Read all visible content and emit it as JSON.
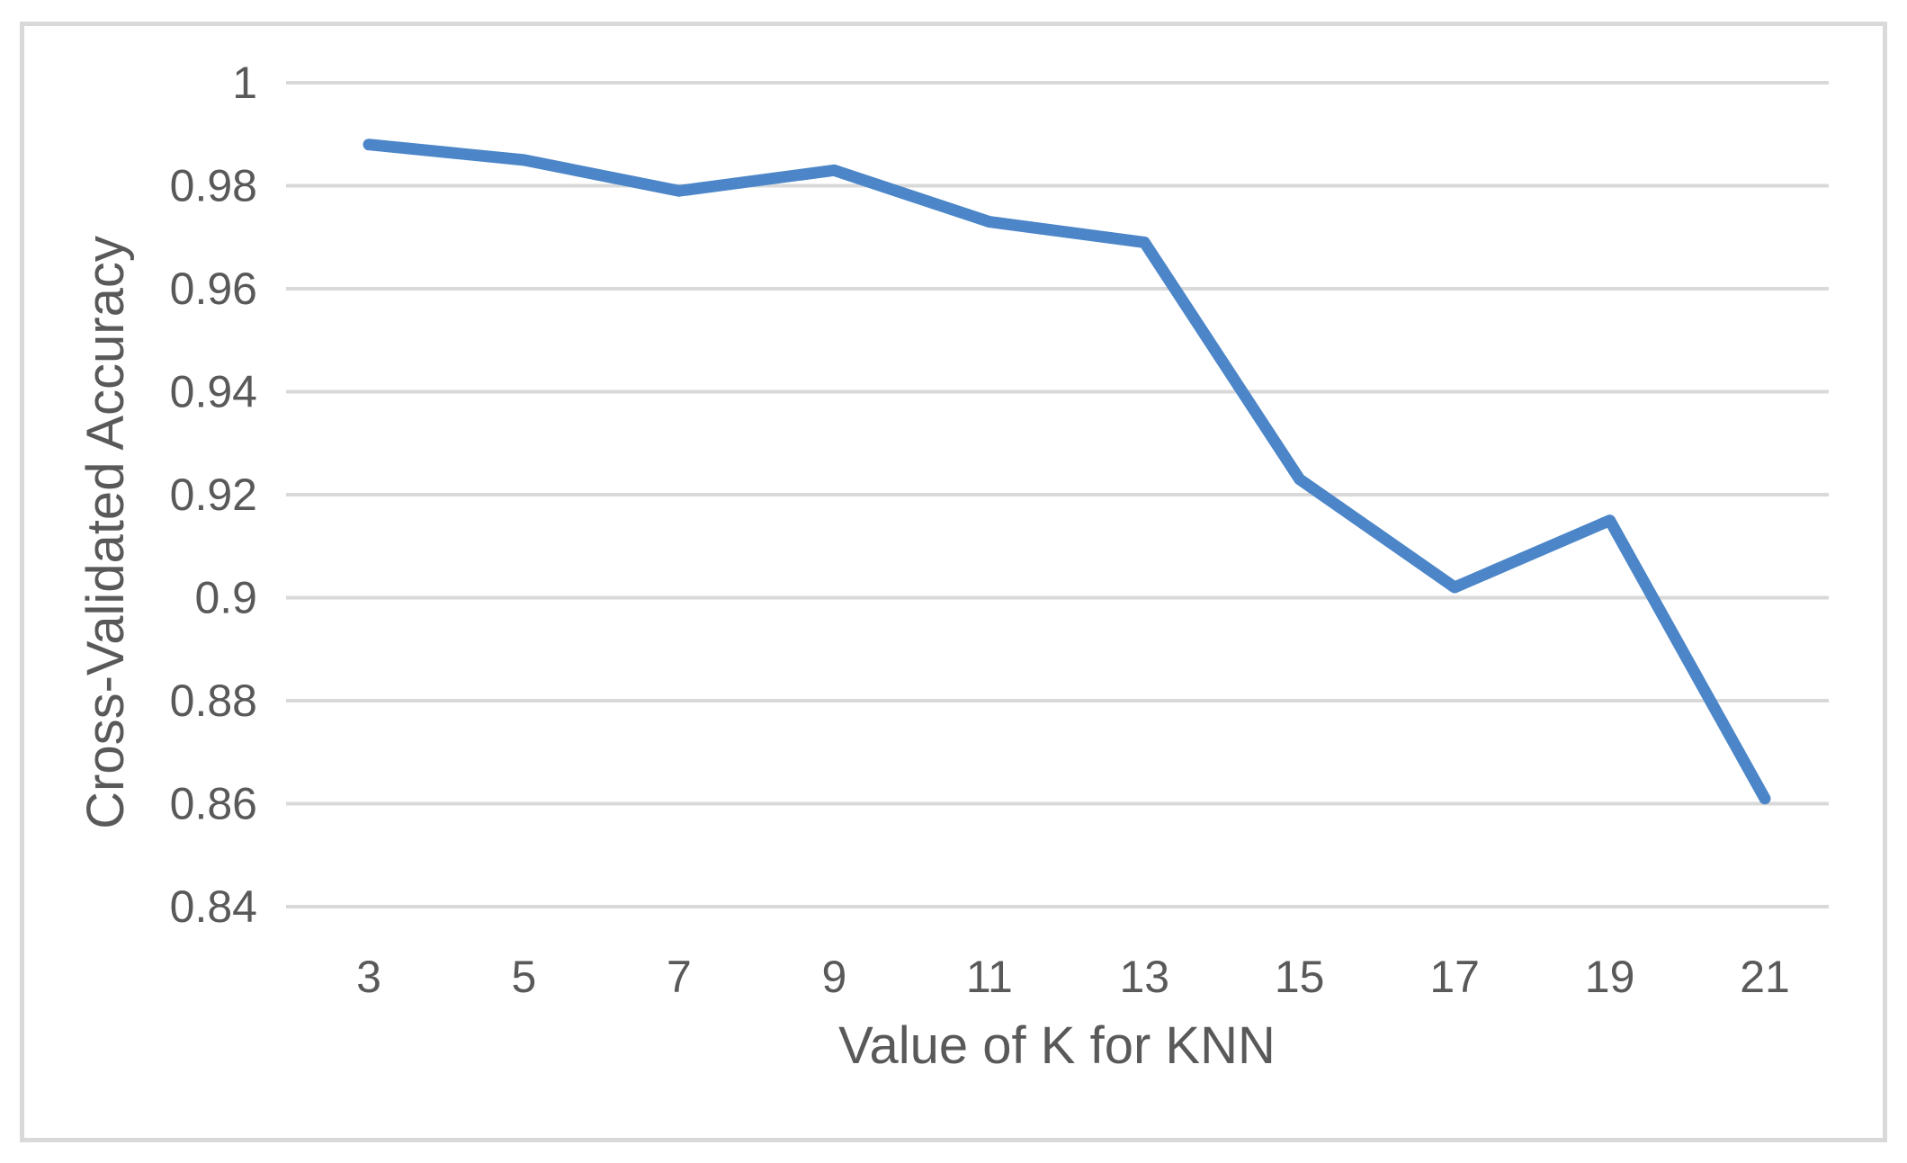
{
  "chart_data": {
    "type": "line",
    "title": "",
    "xlabel": "Value of K for KNN",
    "ylabel": "Cross-Validated Accuracy",
    "categories": [
      3,
      5,
      7,
      9,
      11,
      13,
      15,
      17,
      19,
      21
    ],
    "series": [
      {
        "name": "Cross-Validated Accuracy",
        "values": [
          0.988,
          0.985,
          0.979,
          0.983,
          0.973,
          0.969,
          0.923,
          0.902,
          0.915,
          0.861
        ]
      }
    ],
    "ylim": [
      0.84,
      1.0
    ],
    "ytick_values": [
      1,
      0.98,
      0.96,
      0.94,
      0.92,
      0.9,
      0.88,
      0.86,
      0.84
    ],
    "ytick_labels": [
      "1",
      "0.98",
      "0.96",
      "0.94",
      "0.92",
      "0.9",
      "0.88",
      "0.86",
      "0.84"
    ],
    "xtick_labels": [
      "3",
      "5",
      "7",
      "9",
      "11",
      "13",
      "15",
      "17",
      "19",
      "21"
    ],
    "grid": "horizontal",
    "legend": "none",
    "colors": {
      "line": "#4C86C8",
      "gridline": "#D9D9D9",
      "frame_border": "#D9D9D9",
      "tick_text": "#595959",
      "axis_title_text": "#595959",
      "background": "#FFFFFF"
    }
  }
}
